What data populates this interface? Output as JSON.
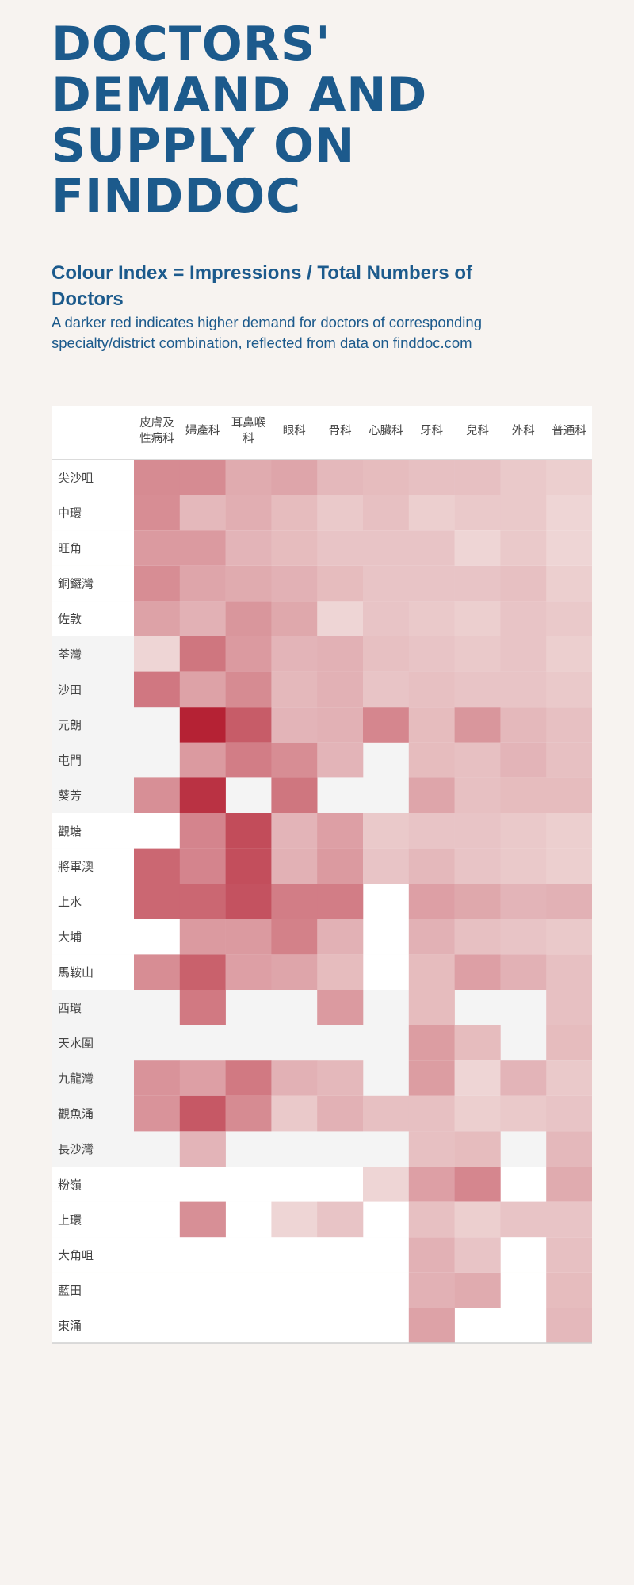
{
  "title": "DOCTORS' DEMAND AND SUPPLY ON FINDDOC",
  "subtitle": "Colour Index = Impressions / Total Numbers of Doctors",
  "description": "A darker red indicates higher demand for doctors of corresponding specialty/district combination, reflected from data on finddoc.com",
  "chart_data": {
    "type": "heatmap",
    "columns": [
      "皮膚及\n性病科",
      "婦產科",
      "耳鼻喉\n科",
      "眼科",
      "骨科",
      "心臟科",
      "牙科",
      "兒科",
      "外科",
      "普通科"
    ],
    "rows": [
      "尖沙咀",
      "中環",
      "旺角",
      "銅鑼灣",
      "佐敦",
      "荃灣",
      "沙田",
      "元朗",
      "屯門",
      "葵芳",
      "觀塘",
      "將軍澳",
      "上水",
      "大埔",
      "馬鞍山",
      "西環",
      "天水圍",
      "九龍灣",
      "觀魚涌",
      "長沙灣",
      "粉嶺",
      "上環",
      "大角咀",
      "藍田",
      "東涌"
    ],
    "values": [
      [
        0.25,
        0.25,
        0.12,
        0.14,
        0.08,
        0.07,
        0.06,
        0.06,
        0.04,
        0.03
      ],
      [
        0.24,
        0.08,
        0.11,
        0.07,
        0.04,
        0.06,
        0.03,
        0.04,
        0.04,
        0.02
      ],
      [
        0.18,
        0.18,
        0.09,
        0.07,
        0.05,
        0.05,
        0.05,
        0.02,
        0.04,
        0.02
      ],
      [
        0.24,
        0.14,
        0.12,
        0.1,
        0.07,
        0.05,
        0.05,
        0.05,
        0.06,
        0.03
      ],
      [
        0.15,
        0.1,
        0.2,
        0.13,
        0.02,
        0.05,
        0.04,
        0.03,
        0.05,
        0.04
      ],
      [
        0.02,
        0.36,
        0.18,
        0.09,
        0.1,
        0.06,
        0.05,
        0.04,
        0.05,
        0.03
      ],
      [
        0.35,
        0.15,
        0.25,
        0.08,
        0.1,
        0.05,
        0.06,
        0.05,
        0.05,
        0.04
      ],
      [
        null,
        1.0,
        0.52,
        0.09,
        0.1,
        0.27,
        0.07,
        0.2,
        0.08,
        0.06
      ],
      [
        null,
        0.18,
        0.32,
        0.24,
        0.09,
        null,
        0.07,
        0.06,
        0.09,
        0.06
      ],
      [
        0.23,
        0.85,
        null,
        0.36,
        null,
        null,
        0.14,
        0.06,
        0.07,
        0.07
      ],
      [
        null,
        0.28,
        0.64,
        0.09,
        0.16,
        0.04,
        0.05,
        0.05,
        0.04,
        0.03
      ],
      [
        0.45,
        0.28,
        0.62,
        0.1,
        0.18,
        0.05,
        0.08,
        0.05,
        0.04,
        0.03
      ],
      [
        0.45,
        0.45,
        0.59,
        0.32,
        0.32,
        null,
        0.16,
        0.13,
        0.09,
        0.1
      ],
      [
        null,
        0.18,
        0.18,
        0.3,
        0.1,
        null,
        0.1,
        0.06,
        0.05,
        0.04
      ],
      [
        0.24,
        0.49,
        0.16,
        0.14,
        0.07,
        null,
        0.07,
        0.16,
        0.1,
        0.06
      ],
      [
        null,
        0.34,
        null,
        null,
        0.18,
        null,
        0.07,
        null,
        null,
        0.06
      ],
      [
        null,
        null,
        null,
        null,
        null,
        null,
        0.17,
        0.07,
        null,
        0.07
      ],
      [
        0.21,
        0.16,
        0.34,
        0.1,
        0.08,
        null,
        0.17,
        0.02,
        0.09,
        0.04
      ],
      [
        0.21,
        0.55,
        0.25,
        0.04,
        0.1,
        0.06,
        0.06,
        0.03,
        0.04,
        0.05
      ],
      [
        null,
        0.09,
        null,
        null,
        null,
        null,
        0.06,
        0.07,
        null,
        0.08
      ],
      [
        null,
        null,
        null,
        null,
        null,
        0.02,
        0.16,
        0.27,
        null,
        0.12
      ],
      [
        null,
        0.23,
        null,
        0.02,
        0.05,
        null,
        0.06,
        0.03,
        0.05,
        0.05
      ],
      [
        null,
        null,
        null,
        null,
        null,
        null,
        0.1,
        0.05,
        null,
        0.06
      ],
      [
        null,
        null,
        null,
        null,
        null,
        null,
        0.1,
        0.12,
        null,
        0.07
      ],
      [
        null,
        null,
        null,
        null,
        null,
        null,
        0.15,
        null,
        null,
        0.08
      ]
    ],
    "color_scale": {
      "low": "#f7f3f0",
      "high": "#b52234",
      "missing": "#ffffff"
    },
    "band_colors": [
      "#ffffff",
      "#f4f4f4"
    ],
    "legend": "none"
  }
}
